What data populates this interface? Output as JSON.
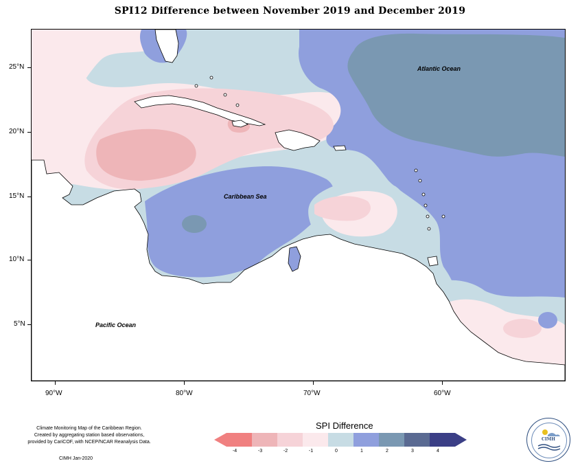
{
  "title": "SPI12 Difference between November 2019 and December 2019",
  "map": {
    "ocean_labels": {
      "atlantic": "Atlantic Ocean",
      "caribbean": "Caribbean Sea",
      "pacific": "Pacific Ocean"
    },
    "latitude_labels": [
      "25°N",
      "20°N",
      "15°N",
      "10°N",
      "5°N"
    ],
    "longitude_labels": [
      "90°W",
      "80°W",
      "70°W",
      "60°W"
    ],
    "colors": {
      "c_m4": "#f08080",
      "c_m3": "#eeb5b8",
      "c_m2": "#f6d3d8",
      "c_m1": "#fbe9ec",
      "c_0": "#c7dce4",
      "c_1": "#8f9fdd",
      "c_2": "#7a98b2",
      "c_3": "#5a6a92",
      "c_4": "#3b3f86",
      "land_outline": "#000000"
    }
  },
  "legend": {
    "title": "SPI Difference",
    "ticks": [
      "-4",
      "-3",
      "-2",
      "-1",
      "0",
      "1",
      "2",
      "3",
      "4"
    ]
  },
  "footer": {
    "note_lines": [
      "Climate Monitoring Map of the Caribbean Region.",
      "Created by aggregating station based observations,",
      "provided by CariCOF, with NCEP/NCAR Reanalysis Data."
    ],
    "credit": "CIMH  Jan-2020",
    "logo_text": "CIMH"
  }
}
